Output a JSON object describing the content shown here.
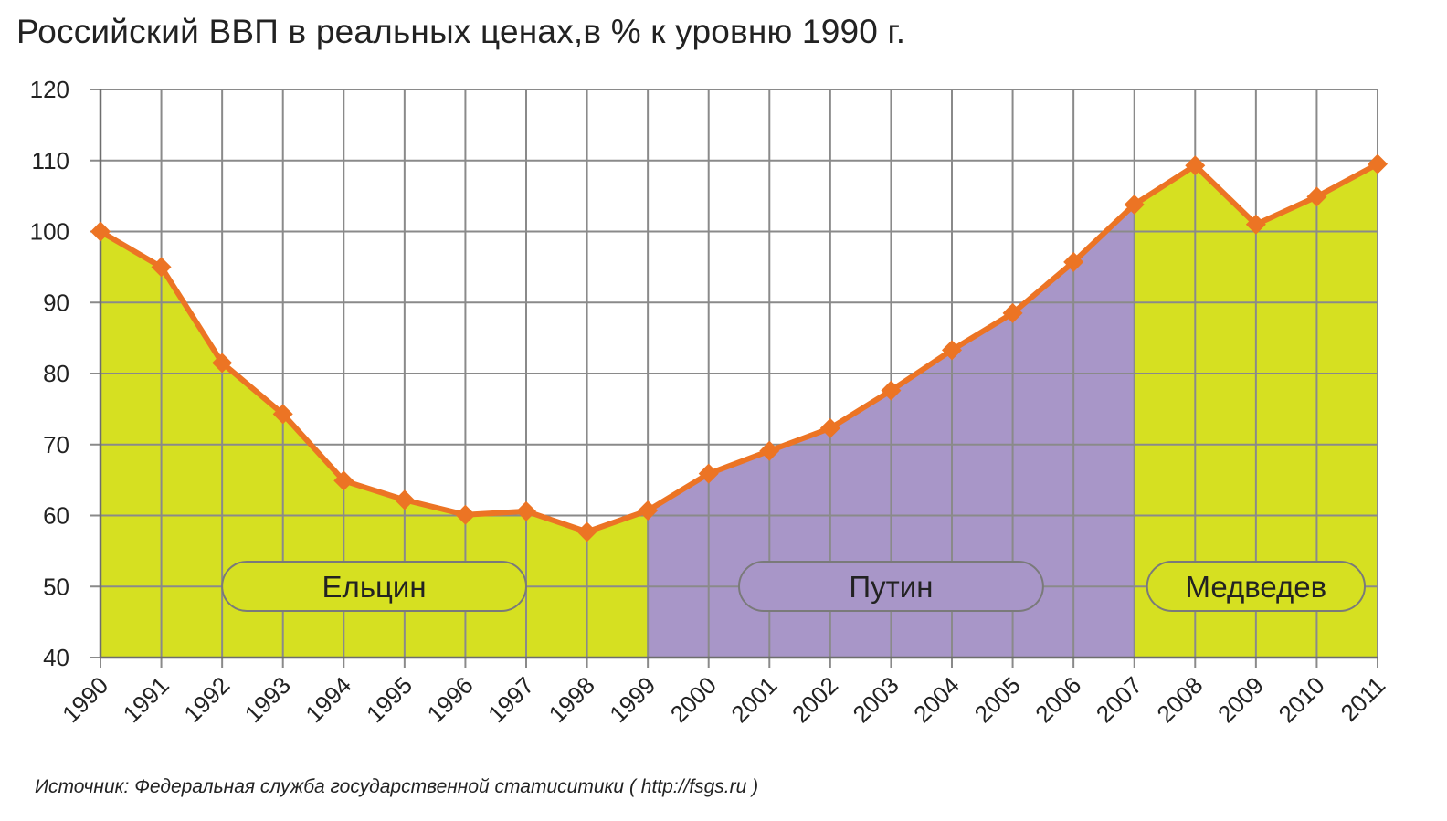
{
  "chart_data": {
    "type": "area",
    "title": "Российский ВВП в реальных ценах,в % к уровню 1990 г.",
    "source": "Источник:  Федеральная служба государственной статиситики ( http://fsgs.ru )",
    "xlabel": "",
    "ylabel": "",
    "ylim": [
      40,
      120
    ],
    "yticks": [
      "40",
      "50",
      "60",
      "70",
      "80",
      "90",
      "100",
      "110",
      "120"
    ],
    "grid": true,
    "categories": [
      "1990",
      "1991",
      "1992",
      "1993",
      "1994",
      "1995",
      "1996",
      "1997",
      "1998",
      "1999",
      "2000",
      "2001",
      "2002",
      "2003",
      "2004",
      "2005",
      "2006",
      "2007",
      "2008",
      "2009",
      "2010",
      "2011"
    ],
    "values": [
      100,
      95,
      81.5,
      74.3,
      64.9,
      62.2,
      60.1,
      60.6,
      57.7,
      60.7,
      65.9,
      69.1,
      72.3,
      77.6,
      83.3,
      88.5,
      95.7,
      103.8,
      109.3,
      101.0,
      104.9,
      109.5
    ],
    "periods": [
      {
        "label": "Ельцин",
        "start": "1990",
        "end": "1999",
        "color": "#d6e021"
      },
      {
        "label": "Путин",
        "start": "1999",
        "end": "2007",
        "color": "#a896c8"
      },
      {
        "label": "Медведев",
        "start": "2007",
        "end": "2011",
        "color": "#d6e021"
      }
    ],
    "line_color": "#ec7424",
    "marker": "diamond"
  }
}
